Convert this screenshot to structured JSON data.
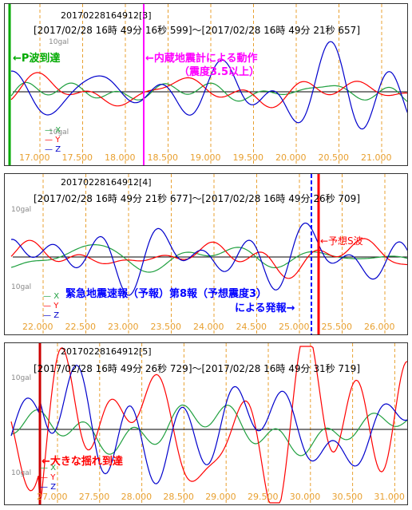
{
  "panels": [
    {
      "id": "20170228164912[3]",
      "range": "[2017/02/28 16時 49分 16秒 599]～[2017/02/28 16時 49分 21秒 657]",
      "scale_top": "10gal",
      "scale_bottom": "10gal",
      "legend": [
        "X",
        "Y",
        "Z"
      ],
      "ticks": [
        "17.000",
        "17.500",
        "18.000",
        "18.500",
        "19.000",
        "19.500",
        "20.000",
        "20.500",
        "21.000"
      ],
      "annotations": [
        {
          "text": "←P波到達",
          "color": "#00aa00"
        },
        {
          "text": "←内蔵地震計による動作",
          "color": "#ff00ff"
        },
        {
          "text": "（震度3.5以上）",
          "color": "#ff00ff"
        }
      ]
    },
    {
      "id": "20170228164912[4]",
      "range": "[2017/02/28 16時 49分 21秒 677]～[2017/02/28 16時 49分 26秒 709]",
      "scale_top": "10gal",
      "scale_bottom": "10gal",
      "legend": [
        "X",
        "Y",
        "Z"
      ],
      "ticks": [
        "22.000",
        "22.500",
        "23.000",
        "23.500",
        "24.000",
        "24.500",
        "25.000",
        "25.500",
        "26.000",
        "26"
      ],
      "annotations": [
        {
          "text": "←予想S波",
          "color": "#ff0000"
        },
        {
          "text": "緊急地震速報（予報）第8報（予想震度3）",
          "color": "#0000ff"
        },
        {
          "text": "による発報→",
          "color": "#0000ff"
        }
      ]
    },
    {
      "id": "20170228164912[5]",
      "range": "[2017/02/28 16時 49分 26秒 729]～[2017/02/28 16時 49分 31秒 719]",
      "scale_top": "10gal",
      "scale_bottom": "10gal",
      "legend": [
        "X",
        "Y",
        "Z"
      ],
      "ticks": [
        "27.000",
        "27.500",
        "28.000",
        "28.500",
        "29.000",
        "29.500",
        "30.000",
        "30.500",
        "31.000",
        "31"
      ],
      "annotations": [
        {
          "text": "←大きな揺れ到達",
          "color": "#ff0000"
        }
      ]
    }
  ],
  "chart_data": [
    {
      "type": "line",
      "title": "20170228164912[3]",
      "x_unit": "s",
      "xlim": [
        16.599,
        21.657
      ],
      "series": [
        {
          "name": "X",
          "color": "#20a040"
        },
        {
          "name": "Y",
          "color": "#ff0000"
        },
        {
          "name": "Z",
          "color": "#0000cc"
        }
      ],
      "markers": [
        {
          "x": 16.6,
          "color": "#00aa00"
        },
        {
          "x": 18.05,
          "color": "#ff00ff"
        }
      ]
    },
    {
      "type": "line",
      "title": "20170228164912[4]",
      "x_unit": "s",
      "xlim": [
        21.677,
        26.709
      ],
      "series": [
        {
          "name": "X",
          "color": "#20a040"
        },
        {
          "name": "Y",
          "color": "#ff0000"
        },
        {
          "name": "Z",
          "color": "#0000cc"
        }
      ],
      "markers": [
        {
          "x": 25.1,
          "color": "#0000ff"
        },
        {
          "x": 25.2,
          "color": "#ff0000"
        }
      ]
    },
    {
      "type": "line",
      "title": "20170228164912[5]",
      "x_unit": "s",
      "xlim": [
        26.729,
        31.719
      ],
      "series": [
        {
          "name": "X",
          "color": "#20a040"
        },
        {
          "name": "Y",
          "color": "#ff0000"
        },
        {
          "name": "Z",
          "color": "#0000cc"
        }
      ],
      "markers": [
        {
          "x": 27.1,
          "color": "#cc0000"
        }
      ]
    }
  ],
  "colors": {
    "x": "#20a040",
    "y": "#ff0000",
    "z": "#0000cc",
    "grid": "#e8a030",
    "axis": "#000000"
  }
}
